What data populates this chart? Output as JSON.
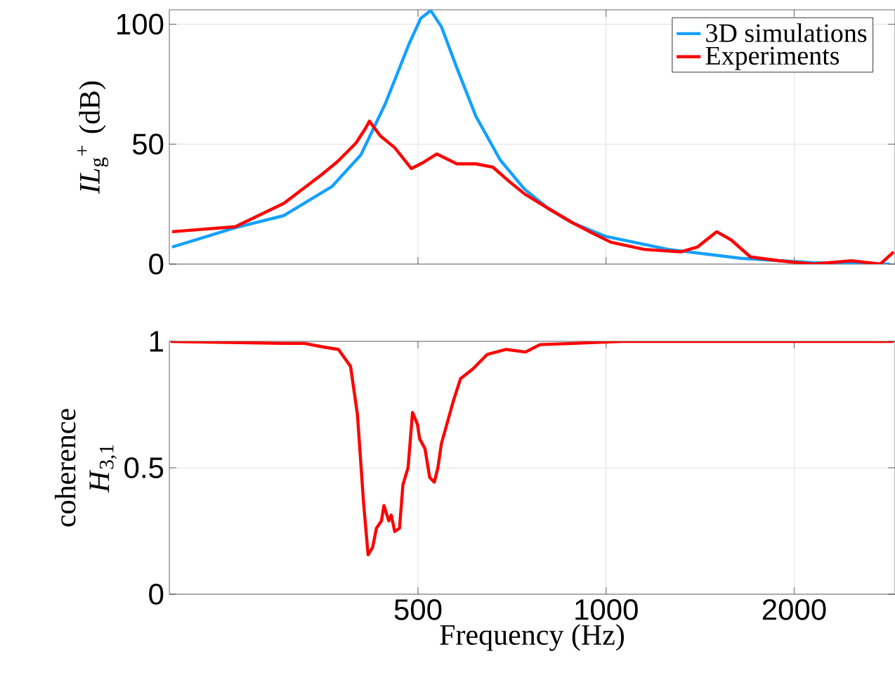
{
  "chart_data": [
    {
      "type": "line",
      "ylabel": "*IL*$_{g}$$^{+}$ (dB)",
      "log": "x",
      "xlim": [
        200,
        2900
      ],
      "ylim": [
        0,
        106
      ],
      "xticks": [
        500,
        1000,
        2000
      ],
      "yticks": [
        0,
        50,
        100
      ],
      "grid": true,
      "legend": "top right",
      "tick_labels": "y",
      "series": [
        {
          "name": "3D simulations",
          "color": "#14a0ff",
          "x": [
            202,
            255,
            305,
            364,
            405,
            443,
            484,
            505,
            524,
            545,
            577,
            619,
            677,
            740,
            808,
            884,
            1000,
            1259,
            1643,
            2144,
            2846
          ],
          "values": [
            7.1,
            15.2,
            20.2,
            32.3,
            45.5,
            66.7,
            91.9,
            102.4,
            105.7,
            99,
            81.8,
            61.6,
            43.4,
            31.3,
            23.2,
            17.2,
            11.5,
            6.1,
            2.4,
            0.6,
            0
          ]
        },
        {
          "name": "Experiments",
          "color": "#ff0000",
          "x": [
            202,
            255,
            305,
            351,
            372,
            398,
            412,
            418,
            435,
            459,
            488,
            510,
            536,
            577,
            619,
            659,
            701,
            740,
            808,
            884,
            948,
            1018,
            1152,
            1316,
            1400,
            1503,
            1585,
            1702,
            1893,
            2144,
            2470,
            2747,
            2886
          ],
          "values": [
            13.5,
            15.6,
            25.3,
            37.4,
            42.8,
            50.5,
            56.6,
            59.6,
            53.5,
            48.5,
            39.8,
            42.4,
            45.9,
            41.8,
            41.8,
            40.4,
            34.3,
            29.3,
            23.2,
            17.2,
            13.1,
            9.1,
            6.1,
            5.1,
            7.1,
            13.5,
            10.1,
            3,
            1.4,
            0,
            1.4,
            0,
            5.1
          ]
        }
      ]
    },
    {
      "type": "line",
      "xlabel": "Frequency (Hz)",
      "ylabel": "coherence *H*$_{3,1}$",
      "log": "x",
      "xlim": [
        200,
        2900
      ],
      "ylim": [
        0,
        1
      ],
      "xticks": [
        500,
        1000,
        2000
      ],
      "yticks": [
        0,
        0.5,
        1
      ],
      "grid": true,
      "series": [
        {
          "color": "#ff0000",
          "x": [
            201,
            302,
            329,
            354,
            373,
            390,
            400,
            409,
            416,
            423,
            429,
            437,
            441,
            449,
            453,
            459,
            467,
            473,
            482,
            490,
            499,
            503,
            513,
            522,
            531,
            538,
            545,
            570,
            585,
            612,
            645,
            692,
            743,
            784,
            887,
            1058,
            2886
          ],
          "values": [
            1,
            0.992,
            0.992,
            0.977,
            0.968,
            0.901,
            0.71,
            0.366,
            0.156,
            0.185,
            0.261,
            0.29,
            0.351,
            0.29,
            0.313,
            0.248,
            0.261,
            0.433,
            0.5,
            0.719,
            0.672,
            0.615,
            0.576,
            0.462,
            0.443,
            0.5,
            0.595,
            0.767,
            0.853,
            0.891,
            0.948,
            0.968,
            0.958,
            0.987,
            0.992,
            1,
            1
          ]
        }
      ]
    }
  ]
}
